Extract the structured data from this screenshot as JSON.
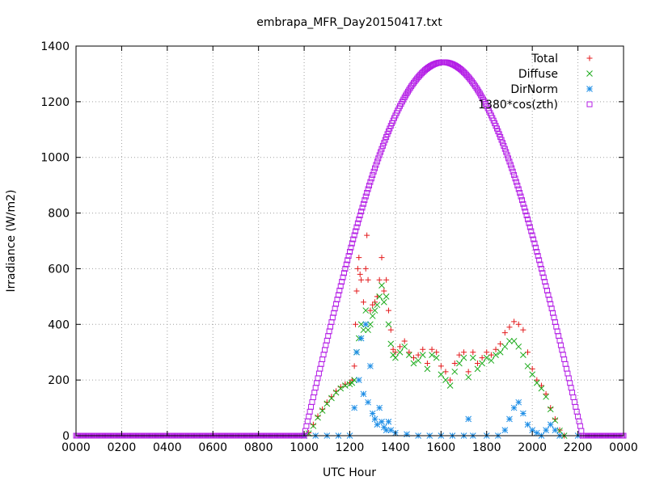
{
  "chart_data": {
    "type": "scatter",
    "title": "embrapa_MFR_Day20150417.txt",
    "xlabel": "UTC Hour",
    "ylabel": "Irradiance (W/m2)",
    "xlim": [
      0,
      24
    ],
    "ylim": [
      0,
      1400
    ],
    "x_ticks": [
      {
        "value": 0,
        "label": "0000"
      },
      {
        "value": 2,
        "label": "0200"
      },
      {
        "value": 4,
        "label": "0400"
      },
      {
        "value": 6,
        "label": "0600"
      },
      {
        "value": 8,
        "label": "0800"
      },
      {
        "value": 10,
        "label": "1000"
      },
      {
        "value": 12,
        "label": "1200"
      },
      {
        "value": 14,
        "label": "1400"
      },
      {
        "value": 16,
        "label": "1600"
      },
      {
        "value": 18,
        "label": "1800"
      },
      {
        "value": 20,
        "label": "2000"
      },
      {
        "value": 22,
        "label": "2200"
      },
      {
        "value": 24,
        "label": "0000"
      }
    ],
    "y_ticks": [
      0,
      200,
      400,
      600,
      800,
      1000,
      1200,
      1400
    ],
    "grid": true,
    "legend_position": "top-right",
    "series": [
      {
        "name": "Total",
        "marker": "plus",
        "color": "#e41a1c",
        "points": [
          [
            10.0,
            0
          ],
          [
            10.2,
            10
          ],
          [
            10.4,
            40
          ],
          [
            10.6,
            70
          ],
          [
            10.8,
            95
          ],
          [
            11.0,
            120
          ],
          [
            11.2,
            140
          ],
          [
            11.4,
            160
          ],
          [
            11.6,
            175
          ],
          [
            11.8,
            185
          ],
          [
            12.0,
            190
          ],
          [
            12.1,
            200
          ],
          [
            12.2,
            250
          ],
          [
            12.25,
            400
          ],
          [
            12.3,
            520
          ],
          [
            12.35,
            600
          ],
          [
            12.4,
            640
          ],
          [
            12.45,
            580
          ],
          [
            12.5,
            560
          ],
          [
            12.6,
            480
          ],
          [
            12.7,
            600
          ],
          [
            12.75,
            720
          ],
          [
            12.8,
            560
          ],
          [
            12.9,
            450
          ],
          [
            13.0,
            470
          ],
          [
            13.1,
            480
          ],
          [
            13.2,
            500
          ],
          [
            13.3,
            560
          ],
          [
            13.4,
            640
          ],
          [
            13.5,
            520
          ],
          [
            13.6,
            560
          ],
          [
            13.7,
            450
          ],
          [
            13.8,
            380
          ],
          [
            13.9,
            310
          ],
          [
            14.0,
            300
          ],
          [
            14.2,
            320
          ],
          [
            14.4,
            340
          ],
          [
            14.6,
            300
          ],
          [
            14.8,
            280
          ],
          [
            15.0,
            290
          ],
          [
            15.2,
            310
          ],
          [
            15.4,
            260
          ],
          [
            15.6,
            310
          ],
          [
            15.8,
            300
          ],
          [
            16.0,
            250
          ],
          [
            16.2,
            230
          ],
          [
            16.4,
            200
          ],
          [
            16.6,
            260
          ],
          [
            16.8,
            290
          ],
          [
            17.0,
            300
          ],
          [
            17.2,
            230
          ],
          [
            17.4,
            300
          ],
          [
            17.6,
            260
          ],
          [
            17.8,
            280
          ],
          [
            18.0,
            300
          ],
          [
            18.2,
            290
          ],
          [
            18.4,
            310
          ],
          [
            18.6,
            330
          ],
          [
            18.8,
            370
          ],
          [
            19.0,
            390
          ],
          [
            19.2,
            410
          ],
          [
            19.4,
            400
          ],
          [
            19.6,
            380
          ],
          [
            19.8,
            300
          ],
          [
            20.0,
            240
          ],
          [
            20.2,
            200
          ],
          [
            20.4,
            180
          ],
          [
            20.6,
            150
          ],
          [
            20.8,
            100
          ],
          [
            21.0,
            60
          ],
          [
            21.2,
            20
          ],
          [
            21.4,
            0
          ]
        ]
      },
      {
        "name": "Diffuse",
        "marker": "cross",
        "color": "#1cab1c",
        "points": [
          [
            10.0,
            0
          ],
          [
            10.2,
            8
          ],
          [
            10.4,
            35
          ],
          [
            10.6,
            65
          ],
          [
            10.8,
            90
          ],
          [
            11.0,
            115
          ],
          [
            11.2,
            135
          ],
          [
            11.4,
            155
          ],
          [
            11.6,
            170
          ],
          [
            11.8,
            180
          ],
          [
            12.0,
            185
          ],
          [
            12.1,
            190
          ],
          [
            12.2,
            200
          ],
          [
            12.3,
            300
          ],
          [
            12.4,
            350
          ],
          [
            12.5,
            400
          ],
          [
            12.6,
            380
          ],
          [
            12.7,
            450
          ],
          [
            12.8,
            380
          ],
          [
            12.9,
            400
          ],
          [
            13.0,
            430
          ],
          [
            13.1,
            450
          ],
          [
            13.2,
            470
          ],
          [
            13.3,
            500
          ],
          [
            13.4,
            540
          ],
          [
            13.5,
            480
          ],
          [
            13.6,
            500
          ],
          [
            13.7,
            400
          ],
          [
            13.8,
            330
          ],
          [
            13.9,
            290
          ],
          [
            14.0,
            280
          ],
          [
            14.2,
            300
          ],
          [
            14.4,
            320
          ],
          [
            14.6,
            290
          ],
          [
            14.8,
            260
          ],
          [
            15.0,
            270
          ],
          [
            15.2,
            290
          ],
          [
            15.4,
            240
          ],
          [
            15.6,
            290
          ],
          [
            15.8,
            280
          ],
          [
            16.0,
            220
          ],
          [
            16.2,
            200
          ],
          [
            16.4,
            180
          ],
          [
            16.6,
            230
          ],
          [
            16.8,
            260
          ],
          [
            17.0,
            280
          ],
          [
            17.2,
            210
          ],
          [
            17.4,
            280
          ],
          [
            17.6,
            240
          ],
          [
            17.8,
            260
          ],
          [
            18.0,
            280
          ],
          [
            18.2,
            270
          ],
          [
            18.4,
            290
          ],
          [
            18.6,
            300
          ],
          [
            18.8,
            320
          ],
          [
            19.0,
            340
          ],
          [
            19.2,
            340
          ],
          [
            19.4,
            320
          ],
          [
            19.6,
            290
          ],
          [
            19.8,
            250
          ],
          [
            20.0,
            220
          ],
          [
            20.2,
            190
          ],
          [
            20.4,
            170
          ],
          [
            20.6,
            140
          ],
          [
            20.8,
            95
          ],
          [
            21.0,
            55
          ],
          [
            21.2,
            18
          ],
          [
            21.4,
            0
          ]
        ]
      },
      {
        "name": "DirNorm",
        "marker": "star",
        "color": "#1e8ee6",
        "points": [
          [
            10.0,
            0
          ],
          [
            10.5,
            0
          ],
          [
            11.0,
            0
          ],
          [
            11.5,
            0
          ],
          [
            12.0,
            0
          ],
          [
            12.2,
            100
          ],
          [
            12.3,
            300
          ],
          [
            12.4,
            200
          ],
          [
            12.5,
            350
          ],
          [
            12.6,
            150
          ],
          [
            12.7,
            400
          ],
          [
            12.8,
            120
          ],
          [
            12.9,
            250
          ],
          [
            13.0,
            80
          ],
          [
            13.1,
            60
          ],
          [
            13.2,
            40
          ],
          [
            13.3,
            100
          ],
          [
            13.4,
            50
          ],
          [
            13.5,
            30
          ],
          [
            13.6,
            20
          ],
          [
            13.7,
            50
          ],
          [
            13.8,
            20
          ],
          [
            14.0,
            10
          ],
          [
            14.5,
            5
          ],
          [
            15.0,
            0
          ],
          [
            15.5,
            0
          ],
          [
            16.0,
            0
          ],
          [
            16.5,
            0
          ],
          [
            17.0,
            0
          ],
          [
            17.2,
            60
          ],
          [
            17.4,
            0
          ],
          [
            18.0,
            0
          ],
          [
            18.5,
            0
          ],
          [
            18.8,
            20
          ],
          [
            19.0,
            60
          ],
          [
            19.2,
            100
          ],
          [
            19.4,
            120
          ],
          [
            19.6,
            80
          ],
          [
            19.8,
            40
          ],
          [
            20.0,
            20
          ],
          [
            20.2,
            10
          ],
          [
            20.4,
            0
          ],
          [
            20.6,
            20
          ],
          [
            20.8,
            40
          ],
          [
            21.0,
            20
          ],
          [
            21.2,
            0
          ],
          [
            22.0,
            0
          ]
        ]
      },
      {
        "name": "1380*cos(zth)",
        "marker": "square",
        "color": "#b41ee6",
        "solar_noon": 16.1,
        "peak": 1342,
        "sunrise": 10.0,
        "sunset": 22.2
      }
    ]
  }
}
